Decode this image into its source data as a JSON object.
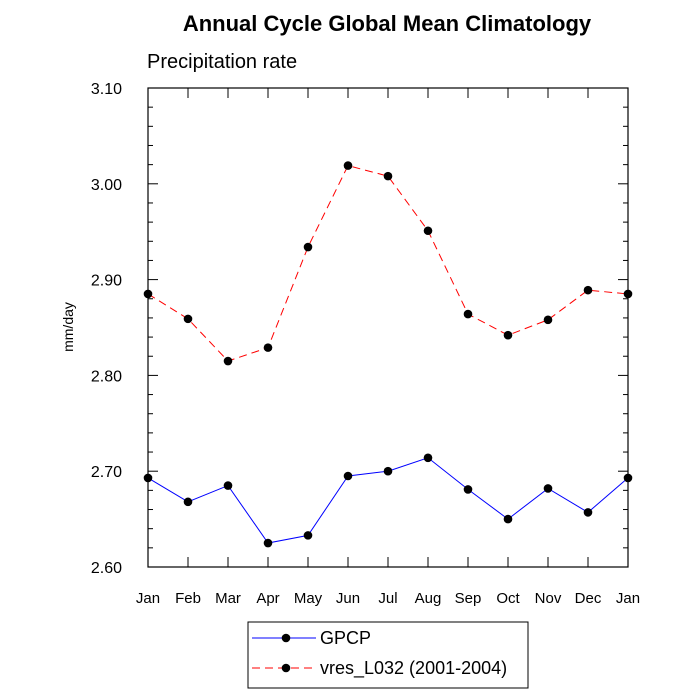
{
  "title": "Annual Cycle Global Mean Climatology",
  "chart_data": {
    "type": "line",
    "title": "Annual Cycle Global Mean Climatology",
    "subtitle": "Precipitation rate",
    "xlabel": "",
    "ylabel": "mm/day",
    "ylim": [
      2.6,
      3.1
    ],
    "yticks": [
      "2.60",
      "2.70",
      "2.80",
      "2.90",
      "3.00",
      "3.10"
    ],
    "categories": [
      "Jan",
      "Feb",
      "Mar",
      "Apr",
      "May",
      "Jun",
      "Jul",
      "Aug",
      "Sep",
      "Oct",
      "Nov",
      "Dec",
      "Jan"
    ],
    "series": [
      {
        "name": "GPCP",
        "color": "#0000ff",
        "dash": "solid",
        "values": [
          2.693,
          2.668,
          2.685,
          2.625,
          2.633,
          2.695,
          2.7,
          2.714,
          2.681,
          2.65,
          2.682,
          2.657,
          2.693
        ]
      },
      {
        "name": "vres_L032 (2001-2004)",
        "color": "#ff0000",
        "dash": "dashed",
        "values": [
          2.885,
          2.859,
          2.815,
          2.829,
          2.934,
          3.019,
          3.008,
          2.951,
          2.864,
          2.842,
          2.858,
          2.889,
          2.885
        ]
      }
    ],
    "legend": "bottom-center"
  }
}
